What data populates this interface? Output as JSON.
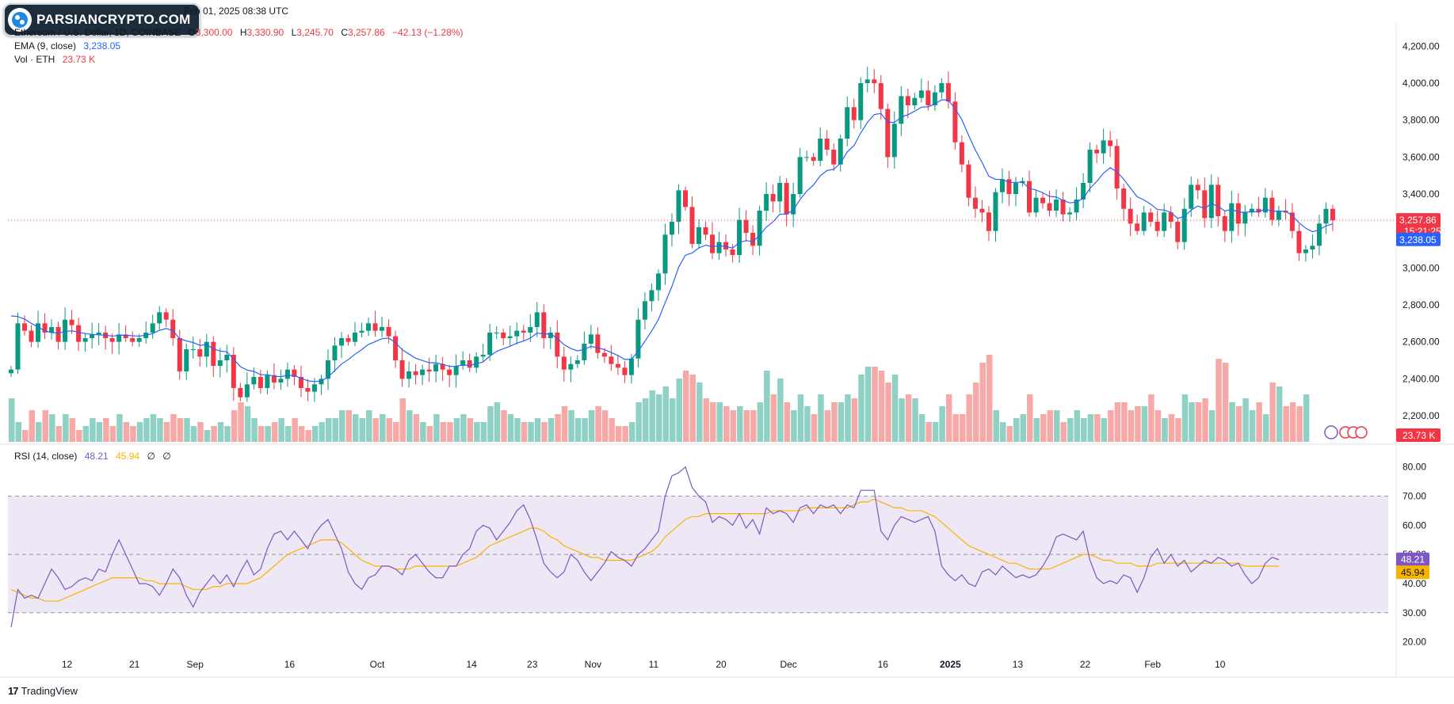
{
  "header": {
    "publish_line": "Feb 01, 2025 08:38 UTC",
    "logo_text": "PARSIANCRYPTO.COM",
    "symbol": "Ethereum / U.S. Dollar, 1D, COINBASE",
    "open_label": "O",
    "open": "3,300.00",
    "high_label": "H",
    "high": "3,330.90",
    "low_label": "L",
    "low": "3,245.70",
    "close_label": "C",
    "close": "3,257.86",
    "change": "−42.13 (−1.28%)",
    "ema_label": "EMA (9, close)",
    "ema_value": "3,238.05",
    "vol_label": "Vol · ETH",
    "vol_value": "23.73 K",
    "rsi_label": "RSI (14, close)",
    "rsi_value": "48.21",
    "rsi_ma": "45.94",
    "rsi_x1": "∅",
    "rsi_x2": "∅"
  },
  "footer": {
    "brand": "TradingView",
    "brand_icon": "tradingview-logo-icon"
  },
  "colors": {
    "up": "#089981",
    "down": "#f23645",
    "ema": "#2962ff",
    "rsi": "#7e57c2",
    "rsi_ma": "#f7b500",
    "rsi_band": "#ede7f6"
  },
  "chart_data": [
    {
      "type": "candlestick",
      "title": "Ethereum / U.S. Dollar, 1D, COINBASE",
      "x_ticks": [
        "12",
        "21",
        "Sep",
        "16",
        "Oct",
        "14",
        "23",
        "Nov",
        "11",
        "20",
        "Dec",
        "16",
        "2025",
        "13",
        "22",
        "Feb",
        "10"
      ],
      "y_ticks": [
        "4,200.00",
        "4,000.00",
        "3,800.00",
        "3,600.00",
        "3,400.00",
        "3,200.00",
        "3,000.00",
        "2,800.00",
        "2,600.00",
        "2,400.00",
        "2,200.00"
      ],
      "ylim": [
        2050,
        4300
      ],
      "grid": false,
      "price_labels": {
        "last": "3,257.86",
        "countdown": "15:21:25",
        "ema": "3,238.05",
        "volume": "23.73 K"
      },
      "closes": [
        2450,
        2700,
        2660,
        2600,
        2700,
        2650,
        2680,
        2600,
        2720,
        2690,
        2600,
        2620,
        2640,
        2650,
        2620,
        2600,
        2640,
        2620,
        2600,
        2620,
        2650,
        2700,
        2760,
        2720,
        2620,
        2440,
        2560,
        2560,
        2520,
        2600,
        2470,
        2500,
        2530,
        2350,
        2300,
        2370,
        2410,
        2350,
        2420,
        2380,
        2400,
        2450,
        2410,
        2350,
        2330,
        2370,
        2400,
        2500,
        2580,
        2620,
        2600,
        2650,
        2660,
        2700,
        2660,
        2680,
        2630,
        2500,
        2400,
        2440,
        2420,
        2450,
        2440,
        2480,
        2450,
        2420,
        2470,
        2500,
        2460,
        2520,
        2530,
        2650,
        2650,
        2620,
        2630,
        2660,
        2650,
        2680,
        2760,
        2620,
        2650,
        2520,
        2450,
        2480,
        2500,
        2590,
        2640,
        2540,
        2520,
        2480,
        2460,
        2420,
        2510,
        2720,
        2820,
        2880,
        2970,
        3180,
        3250,
        3420,
        3330,
        3130,
        3220,
        3180,
        3080,
        3140,
        3100,
        3070,
        3260,
        3190,
        3120,
        3310,
        3400,
        3360,
        3460,
        3290,
        3400,
        3600,
        3600,
        3580,
        3700,
        3640,
        3560,
        3700,
        3870,
        3800,
        4000,
        4020,
        4000,
        3860,
        3600,
        3780,
        3930,
        3880,
        3920,
        3960,
        3880,
        3950,
        4000,
        3900,
        3680,
        3560,
        3380,
        3320,
        3300,
        3200,
        3410,
        3480,
        3400,
        3460,
        3470,
        3300,
        3380,
        3350,
        3310,
        3370,
        3290,
        3300,
        3370,
        3460,
        3640,
        3620,
        3690,
        3660,
        3430,
        3320,
        3240,
        3200,
        3300,
        3250,
        3200,
        3300,
        3250,
        3140,
        3320,
        3450,
        3420,
        3270,
        3450,
        3280,
        3200,
        3350,
        3240,
        3300,
        3320,
        3300,
        3380,
        3260,
        3310,
        3300,
        3200,
        3080,
        3100,
        3120,
        3240,
        3320,
        3257.86
      ],
      "ema_9": [
        2740,
        2737,
        2723,
        2700,
        2680,
        2660,
        2650,
        2648,
        2655,
        2660,
        2652,
        2645,
        2640,
        2638,
        2636,
        2631,
        2635,
        2636,
        2633,
        2631,
        2636,
        2645,
        2662,
        2672,
        2661,
        2617,
        2605,
        2596,
        2581,
        2585,
        2562,
        2550,
        2546,
        2507,
        2466,
        2447,
        2440,
        2422,
        2422,
        2414,
        2411,
        2419,
        2417,
        2404,
        2389,
        2385,
        2388,
        2410,
        2444,
        2480,
        2504,
        2533,
        2558,
        2586,
        2601,
        2617,
        2620,
        2596,
        2557,
        2534,
        2511,
        2499,
        2487,
        2486,
        2479,
        2467,
        2468,
        2475,
        2472,
        2482,
        2491,
        2523,
        2548,
        2563,
        2576,
        2593,
        2604,
        2620,
        2648,
        2642,
        2644,
        2619,
        2585,
        2564,
        2551,
        2559,
        2575,
        2568,
        2558,
        2542,
        2526,
        2505,
        2506,
        2549,
        2603,
        2659,
        2721,
        2812,
        2900,
        3004,
        3069,
        3081,
        3109,
        3123,
        3115,
        3120,
        3116,
        3107,
        3138,
        3148,
        3143,
        3176,
        3221,
        3249,
        3291,
        3291,
        3313,
        3370,
        3416,
        3449,
        3499,
        3527,
        3534,
        3567,
        3628,
        3662,
        3730,
        3788,
        3830,
        3836,
        3789,
        3787,
        3816,
        3829,
        3848,
        3870,
        3872,
        3887,
        3910,
        3908,
        3862,
        3802,
        3717,
        3638,
        3571,
        3496,
        3479,
        3479,
        3463,
        3463,
        3464,
        3431,
        3421,
        3407,
        3387,
        3384,
        3365,
        3352,
        3356,
        3377,
        3430,
        3468,
        3513,
        3542,
        3520,
        3480,
        3432,
        3385,
        3368,
        3345,
        3316,
        3313,
        3300,
        3268,
        3279,
        3313,
        3335,
        3322,
        3348,
        3334,
        3308,
        3317,
        3302,
        3301,
        3305,
        3304,
        3319,
        3307,
        3308,
        3306,
        3285,
        3244,
        3215,
        3196,
        3205,
        3228,
        3238
      ],
      "volume_rel": [
        0.55,
        0.25,
        0.15,
        0.4,
        0.25,
        0.4,
        0.35,
        0.2,
        0.35,
        0.3,
        0.15,
        0.2,
        0.3,
        0.25,
        0.3,
        0.2,
        0.35,
        0.25,
        0.2,
        0.25,
        0.3,
        0.35,
        0.3,
        0.25,
        0.35,
        0.3,
        0.3,
        0.2,
        0.25,
        0.15,
        0.2,
        0.25,
        0.2,
        0.4,
        0.5,
        0.45,
        0.3,
        0.2,
        0.2,
        0.25,
        0.3,
        0.2,
        0.3,
        0.2,
        0.15,
        0.2,
        0.25,
        0.3,
        0.3,
        0.4,
        0.4,
        0.35,
        0.3,
        0.4,
        0.3,
        0.35,
        0.3,
        0.25,
        0.55,
        0.4,
        0.35,
        0.25,
        0.2,
        0.35,
        0.25,
        0.25,
        0.3,
        0.35,
        0.3,
        0.25,
        0.25,
        0.45,
        0.5,
        0.4,
        0.35,
        0.3,
        0.25,
        0.25,
        0.3,
        0.25,
        0.3,
        0.35,
        0.45,
        0.4,
        0.3,
        0.3,
        0.4,
        0.45,
        0.4,
        0.3,
        0.2,
        0.2,
        0.25,
        0.5,
        0.55,
        0.65,
        0.6,
        0.7,
        0.55,
        0.8,
        0.9,
        0.85,
        0.75,
        0.55,
        0.5,
        0.5,
        0.45,
        0.4,
        0.45,
        0.4,
        0.4,
        0.5,
        0.9,
        0.6,
        0.8,
        0.5,
        0.4,
        0.6,
        0.45,
        0.35,
        0.6,
        0.4,
        0.5,
        0.5,
        0.6,
        0.55,
        0.85,
        0.95,
        0.95,
        0.9,
        0.75,
        0.85,
        0.55,
        0.6,
        0.55,
        0.35,
        0.25,
        0.25,
        0.45,
        0.6,
        0.35,
        0.35,
        0.6,
        0.75,
        1.0,
        1.1,
        0.4,
        0.25,
        0.2,
        0.3,
        0.35,
        0.6,
        0.3,
        0.35,
        0.4,
        0.4,
        0.25,
        0.3,
        0.4,
        0.3,
        0.35,
        0.35,
        0.3,
        0.4,
        0.5,
        0.5,
        0.4,
        0.45,
        0.45,
        0.6,
        0.4,
        0.3,
        0.35,
        0.3,
        0.6,
        0.5,
        0.5,
        0.55,
        0.4,
        1.05,
        1.0,
        0.5,
        0.45,
        0.55,
        0.4,
        0.5,
        0.35,
        0.75,
        0.7,
        0.45,
        0.5,
        0.45,
        0.6
      ],
      "series": [
        {
          "name": "EMA (9, close)"
        },
        {
          "name": "Vol · ETH"
        }
      ]
    },
    {
      "type": "line",
      "title": "RSI (14, close)",
      "y_ticks": [
        "80.00",
        "70.00",
        "60.00",
        "50.00",
        "40.00",
        "30.00",
        "20.00"
      ],
      "ylim": [
        15,
        84
      ],
      "band": [
        30,
        70
      ],
      "mid_line": 50,
      "price_labels": {
        "rsi": "48.21",
        "ma": "45.94"
      },
      "series": [
        {
          "name": "RSI (14, close)",
          "values": [
            25,
            38,
            35,
            36,
            35,
            40,
            45,
            42,
            38,
            39,
            41,
            42,
            41,
            45,
            44,
            50,
            55,
            50,
            45,
            40,
            40,
            39,
            36,
            40,
            45,
            42,
            36,
            32,
            37,
            40,
            43,
            40,
            43,
            39,
            44,
            48,
            43,
            45,
            52,
            57,
            58,
            55,
            58,
            55,
            52,
            57,
            60,
            62,
            57,
            52,
            44,
            40,
            38,
            42,
            43,
            46,
            46,
            45,
            43,
            48,
            50,
            47,
            44,
            42,
            42,
            46,
            46,
            50,
            52,
            58,
            60,
            59,
            55,
            58,
            61,
            65,
            67,
            62,
            55,
            47,
            44,
            42,
            44,
            50,
            48,
            44,
            41,
            44,
            47,
            51,
            49,
            48,
            46,
            50,
            52,
            55,
            58,
            70,
            77,
            78,
            80,
            73,
            70,
            68,
            61,
            63,
            62,
            60,
            64,
            59,
            62,
            57,
            66,
            64,
            65,
            64,
            61,
            66,
            67,
            64,
            67,
            66,
            67,
            64,
            67,
            66,
            72,
            72,
            72,
            58,
            55,
            60,
            63,
            62,
            61,
            62,
            63,
            58,
            46,
            43,
            41,
            43,
            40,
            39,
            44,
            45,
            43,
            46,
            44,
            42,
            43,
            42,
            43,
            46,
            50,
            56,
            57,
            56,
            55,
            58,
            48,
            42,
            40,
            41,
            40,
            43,
            42,
            37,
            42,
            49,
            52,
            47,
            50,
            46,
            48,
            44,
            46,
            48,
            47,
            49,
            48,
            46,
            47,
            43,
            40,
            42,
            47,
            49,
            48.21
          ]
        },
        {
          "name": "RSI MA",
          "values": [
            38,
            37,
            36,
            35,
            35,
            34,
            34,
            34,
            35,
            36,
            37,
            38,
            39,
            40,
            41,
            42,
            42,
            42,
            42,
            42,
            41,
            41,
            40,
            40,
            40,
            40,
            39,
            38,
            38,
            38,
            39,
            39,
            40,
            40,
            40,
            40,
            41,
            42,
            44,
            46,
            48,
            50,
            51,
            52,
            53,
            54,
            55,
            55,
            55,
            54,
            52,
            50,
            48,
            47,
            46,
            46,
            46,
            45,
            45,
            45,
            46,
            46,
            46,
            46,
            46,
            46,
            46,
            47,
            48,
            49,
            51,
            53,
            54,
            55,
            56,
            57,
            58,
            59,
            59,
            58,
            56,
            55,
            53,
            52,
            51,
            50,
            49,
            49,
            48,
            48,
            48,
            48,
            48,
            49,
            50,
            51,
            53,
            56,
            58,
            60,
            62,
            63,
            63,
            64,
            64,
            64,
            64,
            64,
            64,
            64,
            64,
            64,
            64,
            65,
            65,
            65,
            65,
            65,
            66,
            66,
            66,
            66,
            66,
            66,
            66,
            67,
            68,
            68,
            69,
            68,
            67,
            66,
            66,
            65,
            65,
            65,
            64,
            63,
            61,
            59,
            57,
            55,
            53,
            52,
            51,
            50,
            49,
            48,
            47,
            47,
            46,
            45,
            45,
            45,
            45,
            46,
            47,
            48,
            49,
            50,
            50,
            49,
            48,
            48,
            47,
            47,
            47,
            46,
            46,
            46,
            47,
            47,
            47,
            47,
            47,
            47,
            47,
            47,
            47,
            47,
            47,
            47,
            47,
            46,
            46,
            46,
            46,
            46,
            45.94
          ]
        }
      ]
    }
  ]
}
